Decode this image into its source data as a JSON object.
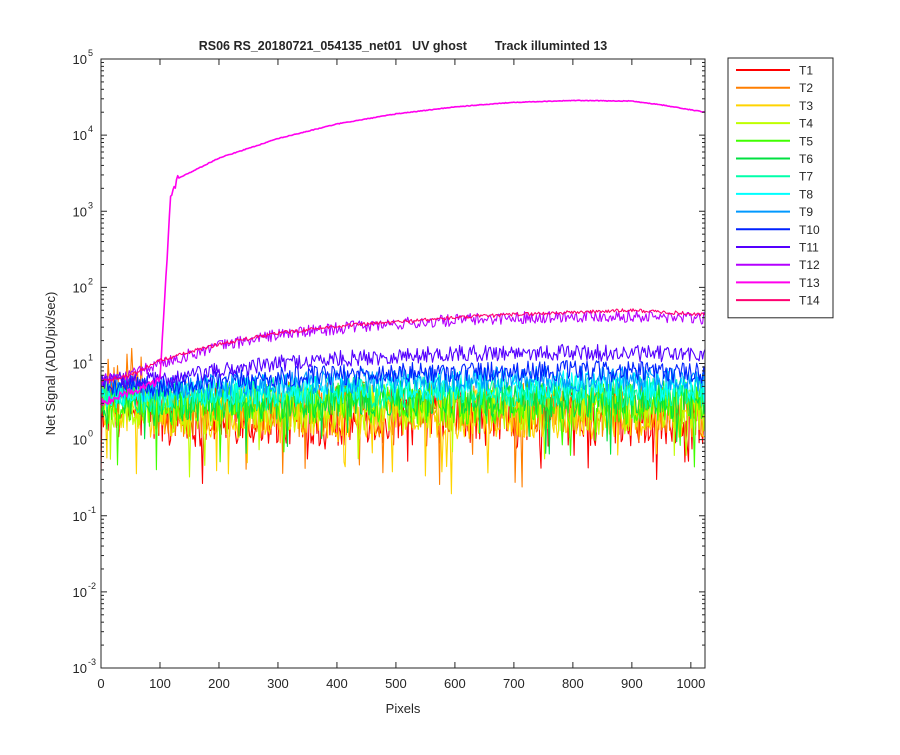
{
  "chart_data": {
    "type": "line",
    "title": "RS06 RS_20180721_054135_net01   UV ghost        Track illuminted 13",
    "xlabel": "Pixels",
    "ylabel": "Net Signal (ADU/pix/sec)",
    "xlim": [
      0,
      1024
    ],
    "ylim": [
      0.001,
      100000
    ],
    "yscale": "log",
    "grid": false,
    "legend_position": "outside-top-right",
    "x_ticks": [
      "0",
      "100",
      "200",
      "300",
      "400",
      "500",
      "600",
      "700",
      "800",
      "900",
      "1000"
    ],
    "y_ticks": [
      {
        "base": "10",
        "exp": "-3"
      },
      {
        "base": "10",
        "exp": "-2"
      },
      {
        "base": "10",
        "exp": "-1"
      },
      {
        "base": "10",
        "exp": "0"
      },
      {
        "base": "10",
        "exp": "1"
      },
      {
        "base": "10",
        "exp": "2"
      },
      {
        "base": "10",
        "exp": "3"
      },
      {
        "base": "10",
        "exp": "4"
      },
      {
        "base": "10",
        "exp": "5"
      }
    ],
    "series": [
      {
        "name": "T1",
        "color": "#ff0000",
        "x": [
          0,
          100,
          200,
          300,
          400,
          500,
          600,
          700,
          800,
          900,
          1024
        ],
        "y": [
          3,
          2,
          2,
          2,
          2,
          2,
          2,
          2,
          2,
          2,
          2
        ]
      },
      {
        "name": "T2",
        "color": "#ff7f00",
        "x": [
          0,
          50,
          100,
          200,
          300,
          400,
          500,
          600,
          700,
          800,
          900,
          1024
        ],
        "y": [
          4,
          10,
          2.5,
          2.5,
          2.5,
          2.5,
          2.5,
          2.5,
          2.5,
          2.5,
          2.5,
          2.5
        ]
      },
      {
        "name": "T3",
        "color": "#ffd400",
        "x": [
          0,
          100,
          200,
          300,
          400,
          500,
          600,
          700,
          800,
          900,
          1024
        ],
        "y": [
          3,
          2.2,
          2.2,
          2.2,
          2.2,
          2.2,
          2.2,
          2.2,
          2.2,
          2.2,
          2.2
        ]
      },
      {
        "name": "T4",
        "color": "#bfff00",
        "x": [
          0,
          100,
          200,
          300,
          400,
          500,
          600,
          700,
          800,
          900,
          1024
        ],
        "y": [
          3,
          2.5,
          2.5,
          2.6,
          2.6,
          2.6,
          2.6,
          2.6,
          2.6,
          2.6,
          2.5
        ]
      },
      {
        "name": "T5",
        "color": "#40ff00",
        "x": [
          0,
          100,
          200,
          300,
          400,
          500,
          600,
          700,
          800,
          900,
          1024
        ],
        "y": [
          3,
          2.8,
          3,
          3,
          3,
          3,
          3,
          3,
          3,
          3,
          3
        ]
      },
      {
        "name": "T6",
        "color": "#00e040",
        "x": [
          0,
          100,
          200,
          300,
          400,
          500,
          600,
          700,
          800,
          900,
          1024
        ],
        "y": [
          3.5,
          3,
          3.2,
          3.3,
          3.4,
          3.5,
          3.5,
          3.5,
          3.5,
          3.4,
          3.3
        ]
      },
      {
        "name": "T7",
        "color": "#00ffaa",
        "x": [
          0,
          100,
          200,
          300,
          400,
          500,
          600,
          700,
          800,
          900,
          1024
        ],
        "y": [
          4,
          3.5,
          3.8,
          4,
          4.2,
          4.3,
          4.4,
          4.4,
          4.4,
          4.3,
          4.2
        ]
      },
      {
        "name": "T8",
        "color": "#00ffff",
        "x": [
          0,
          100,
          200,
          300,
          400,
          500,
          600,
          700,
          800,
          900,
          1024
        ],
        "y": [
          4,
          4,
          4.3,
          4.6,
          4.8,
          5,
          5.1,
          5.2,
          5.2,
          5.1,
          5
        ]
      },
      {
        "name": "T9",
        "color": "#0099ff",
        "x": [
          0,
          100,
          200,
          300,
          400,
          500,
          600,
          700,
          800,
          900,
          1024
        ],
        "y": [
          5,
          4.5,
          5,
          5.4,
          5.8,
          6,
          6.2,
          6.3,
          6.3,
          6.2,
          6
        ]
      },
      {
        "name": "T10",
        "color": "#0022ff",
        "x": [
          0,
          100,
          200,
          300,
          400,
          500,
          600,
          700,
          800,
          900,
          1024
        ],
        "y": [
          5,
          5,
          5.8,
          6.5,
          7,
          7.5,
          7.8,
          8,
          8,
          7.8,
          7.5
        ]
      },
      {
        "name": "T11",
        "color": "#5500ff",
        "x": [
          0,
          100,
          200,
          300,
          400,
          500,
          600,
          700,
          800,
          900,
          1024
        ],
        "y": [
          6,
          6,
          8,
          10,
          11.5,
          12.5,
          13.5,
          14,
          14,
          13.5,
          13
        ]
      },
      {
        "name": "T12",
        "color": "#b400ff",
        "x": [
          0,
          50,
          100,
          200,
          300,
          400,
          500,
          600,
          700,
          800,
          900,
          1024
        ],
        "y": [
          6,
          7,
          10,
          17,
          24,
          29,
          33,
          37,
          40,
          42,
          42,
          39
        ]
      },
      {
        "name": "T13",
        "color": "#ff00ee",
        "x": [
          0,
          100,
          118,
          130,
          150,
          200,
          300,
          400,
          500,
          600,
          700,
          800,
          900,
          950,
          1024
        ],
        "y": [
          3,
          6,
          1500,
          2700,
          3200,
          5000,
          9000,
          14000,
          19000,
          23500,
          27000,
          28500,
          28000,
          25000,
          20000
        ]
      },
      {
        "name": "T14",
        "color": "#ff0070",
        "x": [
          0,
          50,
          100,
          200,
          300,
          400,
          500,
          600,
          700,
          800,
          900,
          1024
        ],
        "y": [
          6,
          7,
          11,
          18,
          25,
          31,
          35,
          40,
          44,
          47,
          50,
          44
        ]
      }
    ]
  }
}
